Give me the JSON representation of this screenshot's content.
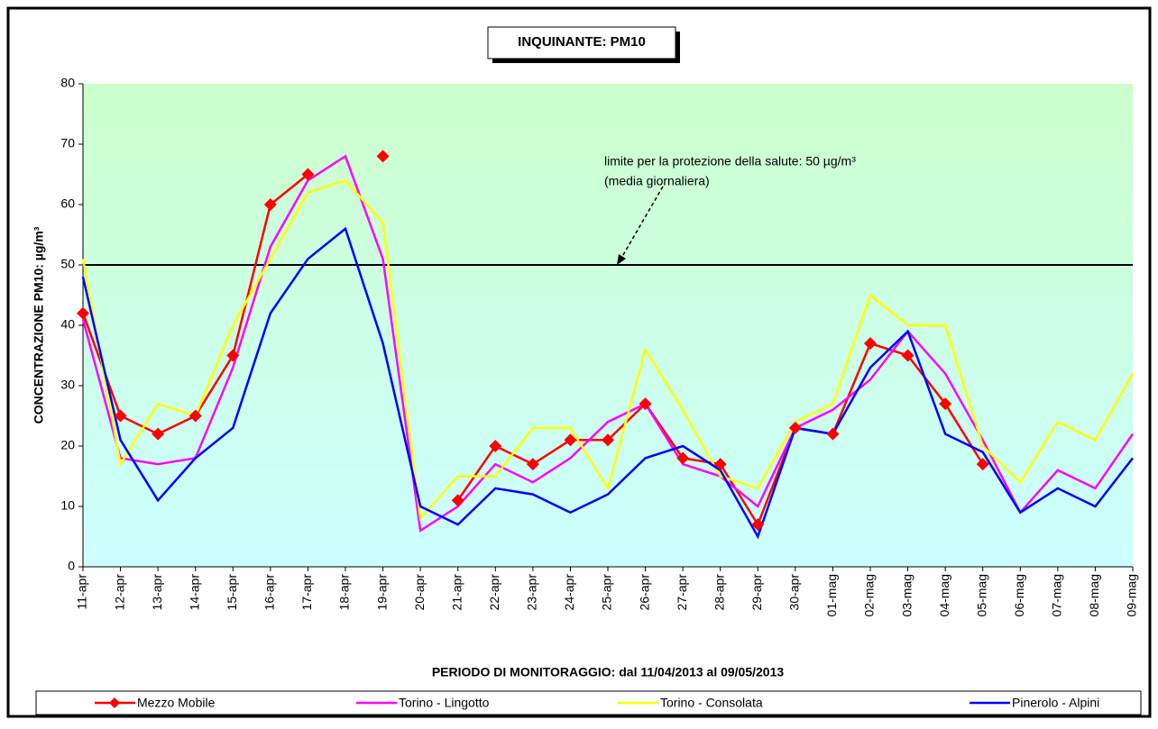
{
  "chart_data": {
    "type": "line",
    "title": "INQUINANTE: PM10",
    "y_label": "CONCENTRAZIONE PM10: µg/m³",
    "x_label": "PERIODO DI MONITORAGGIO: dal 11/04/2013 al 09/05/2013",
    "annotations": [
      "limite per la protezione della salute: 50 µg/m³",
      "(media giornaliera)"
    ],
    "reference_line": 50,
    "categories": [
      "11-apr",
      "12-apr",
      "13-apr",
      "14-apr",
      "15-apr",
      "16-apr",
      "17-apr",
      "18-apr",
      "19-apr",
      "20-apr",
      "21-apr",
      "22-apr",
      "23-apr",
      "24-apr",
      "25-apr",
      "26-apr",
      "27-apr",
      "28-apr",
      "29-apr",
      "30-apr",
      "01-mag",
      "02-mag",
      "03-mag",
      "04-mag",
      "05-mag",
      "06-mag",
      "07-mag",
      "08-mag",
      "09-mag"
    ],
    "series": [
      {
        "name": "Mezzo Mobile",
        "color": "#ff0000",
        "marker": "diamond",
        "values": [
          42,
          25,
          22,
          25,
          35,
          60,
          65,
          null,
          68,
          null,
          11,
          20,
          17,
          21,
          21,
          27,
          18,
          17,
          7,
          23,
          22,
          37,
          35,
          27,
          17,
          null,
          null,
          null,
          null
        ]
      },
      {
        "name": "Torino - Lingotto",
        "color": "#ff00ff",
        "values": [
          41,
          18,
          17,
          18,
          33,
          53,
          64,
          68,
          51,
          6,
          10,
          17,
          14,
          18,
          24,
          27,
          17,
          15,
          10,
          23,
          26,
          31,
          39,
          32,
          21,
          9,
          16,
          13,
          22
        ]
      },
      {
        "name": "Torino - Consolata",
        "color": "#ffff00",
        "values": [
          51,
          17,
          27,
          25,
          40,
          51,
          62,
          64,
          57,
          8,
          15,
          15,
          23,
          23,
          13,
          36,
          26,
          15,
          13,
          24,
          27,
          45,
          40,
          40,
          20,
          14,
          24,
          21,
          32
        ]
      },
      {
        "name": "Pinerolo - Alpini",
        "color": "#0000ff",
        "values": [
          48,
          21,
          11,
          18,
          23,
          42,
          51,
          56,
          37,
          10,
          7,
          13,
          12,
          9,
          12,
          18,
          20,
          16,
          5,
          23,
          22,
          33,
          39,
          22,
          19,
          9,
          13,
          10,
          18
        ]
      }
    ],
    "ylim": [
      0,
      80
    ],
    "yticks": [
      0,
      10,
      20,
      30,
      40,
      50,
      60,
      70,
      80
    ],
    "legend": "bottom"
  }
}
